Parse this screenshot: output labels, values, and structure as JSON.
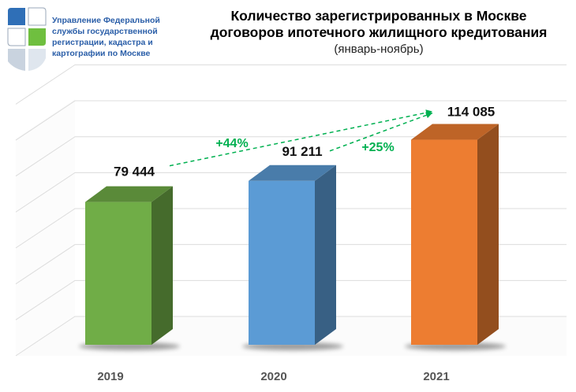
{
  "header": {
    "org_lines": [
      "Управление Федеральной",
      "службы государственной",
      "регистрации, кадастра и",
      "картографии по Москве"
    ],
    "title_lines": [
      "Количество зарегистрированных в Москве",
      "договоров ипотечного жилищного кредитования"
    ],
    "subtitle": "(январь-ноябрь)",
    "logo_icon": "rosreestr-logo-icon"
  },
  "chart_data": {
    "type": "bar",
    "categories": [
      "2019",
      "2020",
      "2021"
    ],
    "values": [
      79444,
      91211,
      114085
    ],
    "value_labels": [
      "79 444",
      "91 211",
      "114 085"
    ],
    "colors": [
      "#70ad47",
      "#5b9bd5",
      "#ed7d31"
    ],
    "ylim": [
      0,
      140000
    ],
    "grid": true,
    "title": "Количество зарегистрированных в Москве договоров ипотечного жилищного кредитования",
    "subtitle": "(январь-ноябрь)",
    "annotations": [
      {
        "text": "+44%",
        "from": "2019",
        "to": "2021",
        "color": "#00b050"
      },
      {
        "text": "+25%",
        "from": "2020",
        "to": "2021",
        "color": "#00b050"
      }
    ]
  }
}
